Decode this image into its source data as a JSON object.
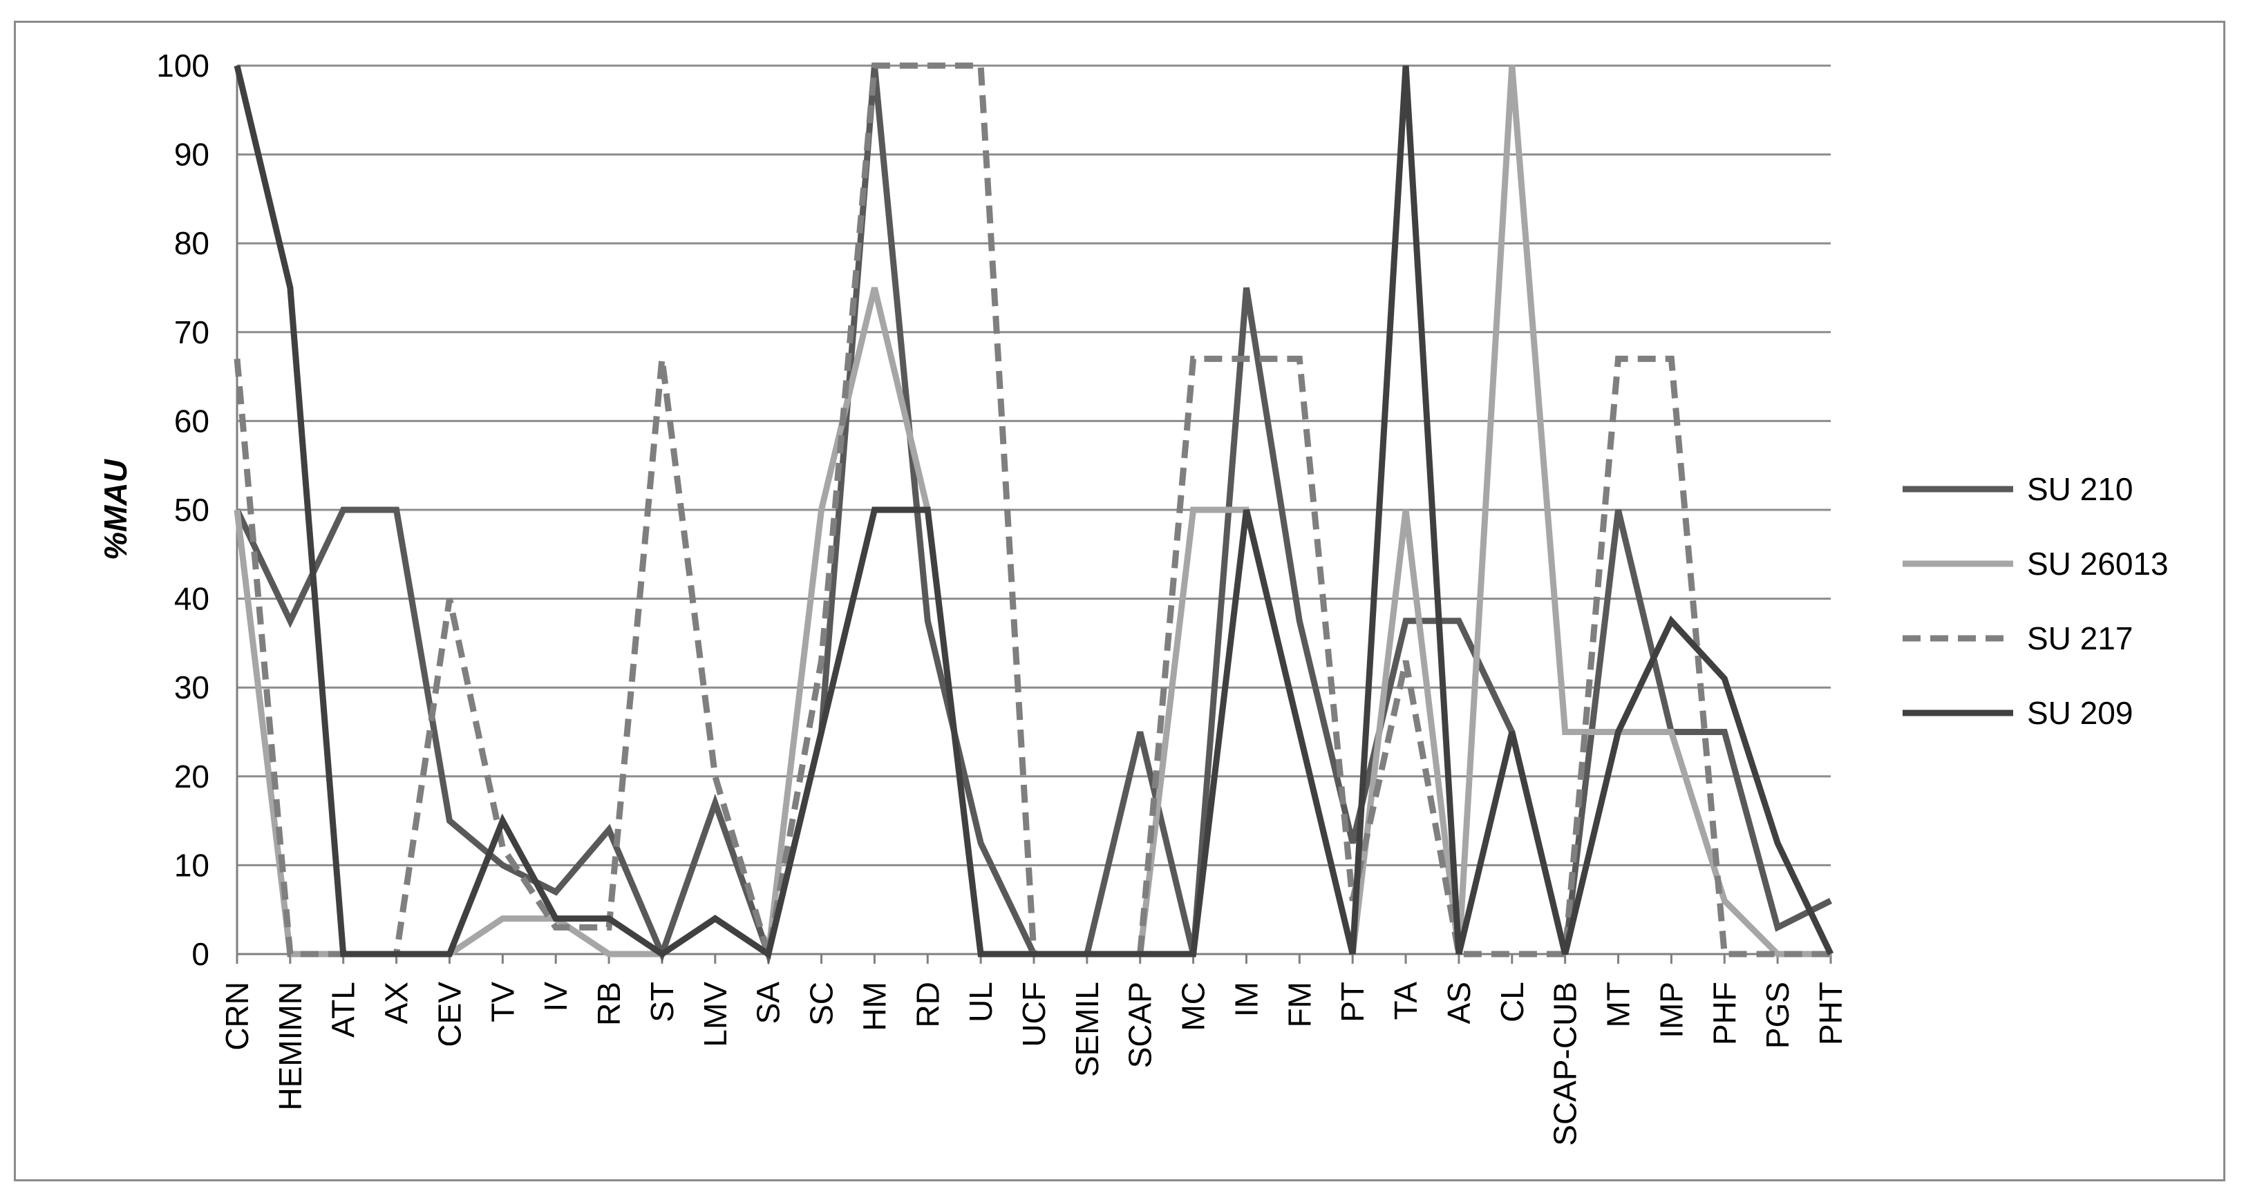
{
  "chart_data": {
    "type": "line",
    "title": "",
    "xlabel": "",
    "ylabel": "%MAU",
    "ylim": [
      0,
      100
    ],
    "yticks": [
      0,
      10,
      20,
      30,
      40,
      50,
      60,
      70,
      80,
      90,
      100
    ],
    "grid": "horizontal",
    "legend_position": "right",
    "categories": [
      "CRN",
      "HEMIMN",
      "ATL",
      "AX",
      "CEV",
      "TV",
      "IV",
      "RB",
      "ST",
      "LMV",
      "SA",
      "SC",
      "HM",
      "RD",
      "UL",
      "UCF",
      "SEMIL",
      "SCAP",
      "MC",
      "IM",
      "FM",
      "PT",
      "TA",
      "AS",
      "CL",
      "SCAP-CUB",
      "MT",
      "IMP",
      "PHF",
      "PGS",
      "PHT"
    ],
    "series": [
      {
        "name": "SU 210",
        "color": "#595959",
        "dash": "solid",
        "values": [
          50,
          37.5,
          50,
          50,
          15,
          10,
          7,
          14,
          0,
          17,
          0,
          25,
          100,
          37.5,
          12.5,
          0,
          0,
          25,
          0,
          75,
          37.5,
          12.5,
          37.5,
          37.5,
          25,
          0,
          50,
          25,
          25,
          3,
          6
        ]
      },
      {
        "name": "SU 26013",
        "color": "#a6a6a6",
        "dash": "solid",
        "values": [
          50,
          0,
          0,
          0,
          0,
          4,
          4,
          0,
          0,
          4,
          0,
          50,
          75,
          50,
          0,
          0,
          0,
          0,
          50,
          50,
          25,
          0,
          50,
          0,
          100,
          25,
          25,
          25,
          6,
          0,
          0
        ]
      },
      {
        "name": "SU 217",
        "color": "#7f7f7f",
        "dash": "dashed",
        "values": [
          67,
          0,
          0,
          0,
          40,
          12,
          3,
          3,
          67,
          20,
          0,
          33,
          100,
          100,
          100,
          0,
          0,
          0,
          67,
          67,
          67,
          6,
          33,
          0,
          0,
          0,
          67,
          67,
          0,
          0,
          0
        ]
      },
      {
        "name": "SU 209",
        "color": "#404040",
        "dash": "solid",
        "values": [
          100,
          75,
          0,
          0,
          0,
          15,
          4,
          4,
          0,
          4,
          0,
          25,
          50,
          50,
          0,
          0,
          0,
          0,
          0,
          50,
          25,
          0,
          100,
          0,
          25,
          0,
          25,
          37.5,
          31,
          12.5,
          0
        ]
      }
    ]
  }
}
